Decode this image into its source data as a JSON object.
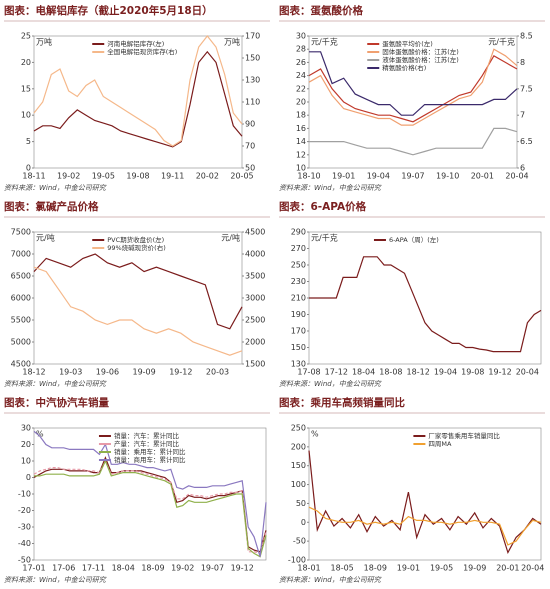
{
  "chart_data": [
    {
      "type": "line",
      "title": "图表：电解铝库存（截止2020年5月18日）",
      "source": "资料来源：Wind，中金公司研究",
      "unit": "万吨",
      "y2unit": "万吨",
      "legend": "upper center",
      "categories": [
        "18-11",
        null,
        null,
        null,
        "19-02",
        null,
        null,
        null,
        "19-05",
        null,
        null,
        null,
        "19-08",
        null,
        null,
        null,
        "19-11",
        null,
        null,
        null,
        "20-02",
        null,
        null,
        null,
        "20-05"
      ],
      "ylim": [
        0,
        25
      ],
      "yticks": [
        0,
        5,
        10,
        15,
        20,
        25
      ],
      "y2lim": [
        50,
        170
      ],
      "y2ticks": [
        50,
        70,
        90,
        110,
        130,
        150,
        170
      ],
      "series": [
        {
          "name": "河南电解铝库存(左)",
          "color": "#7b1c1c",
          "values": [
            7,
            8,
            8,
            7.5,
            9.5,
            11,
            10,
            9,
            8.5,
            8,
            7,
            6.5,
            6,
            5.5,
            5,
            4.5,
            4,
            5,
            12,
            20,
            22,
            20,
            14,
            8,
            6
          ]
        },
        {
          "name": "全国电解铝现货库存(右)",
          "color": "#f5b88a",
          "axis": "y2",
          "values": [
            100,
            110,
            135,
            140,
            120,
            115,
            125,
            130,
            115,
            110,
            105,
            100,
            95,
            90,
            85,
            75,
            70,
            75,
            130,
            160,
            170,
            160,
            135,
            100,
            90
          ]
        }
      ]
    },
    {
      "type": "line",
      "title": "图表：蛋氨酸价格",
      "source": "资料来源：Wind，中金公司研究",
      "unit": "元/千克",
      "y2unit": "元/千克",
      "legend": "upper center",
      "categories": [
        "18-10",
        null,
        null,
        "19-01",
        null,
        null,
        "19-04",
        null,
        null,
        "19-07",
        null,
        null,
        "19-10",
        null,
        null,
        "20-01",
        null,
        null,
        "20-04"
      ],
      "ylim": [
        10,
        30
      ],
      "yticks": [
        10,
        12,
        14,
        16,
        18,
        20,
        22,
        24,
        26,
        28,
        30
      ],
      "y2lim": [
        6,
        8.5
      ],
      "y2ticks": [
        6,
        6.5,
        7,
        7.5,
        8,
        8.5
      ],
      "series": [
        {
          "name": "蛋氨酸平均价(左)",
          "color": "#c0392b",
          "values": [
            24,
            25,
            22,
            20,
            19,
            18.5,
            18,
            18,
            17.5,
            17,
            18,
            19,
            20,
            21,
            21.5,
            24,
            27,
            26,
            25
          ]
        },
        {
          "name": "固体蛋氨酸价格：江苏(左)",
          "color": "#f0a070",
          "values": [
            23,
            24,
            21,
            19,
            18.5,
            18,
            17.5,
            17.5,
            16.5,
            16.5,
            17.5,
            18.5,
            19.5,
            20.5,
            21,
            23,
            28,
            27,
            25.5
          ]
        },
        {
          "name": "液体蛋氨酸价格：江苏(左)",
          "color": "#a0a0a0",
          "values": [
            14,
            14,
            14,
            14,
            13.5,
            13,
            13,
            13,
            12.5,
            12,
            12.5,
            13,
            13,
            13,
            13,
            13,
            16,
            16,
            15.5
          ]
        },
        {
          "name": "精氨酸价格(右)",
          "color": "#3b2a6b",
          "axis": "y2",
          "values": [
            8.2,
            8.2,
            7.6,
            7.7,
            7.4,
            7.3,
            7.2,
            7.2,
            7,
            7,
            7.2,
            7.2,
            7.2,
            7.2,
            7.2,
            7.2,
            7.3,
            7.3,
            7.5
          ]
        }
      ]
    },
    {
      "type": "line",
      "title": "图表：氯碱产品价格",
      "source": "资料来源：Wind，中金公司研究",
      "unit": "元/吨",
      "y2unit": "元/吨",
      "legend": "upper center",
      "categories": [
        "18-12",
        null,
        null,
        "19-03",
        null,
        null,
        "19-06",
        null,
        null,
        "19-09",
        null,
        null,
        "19-12",
        null,
        null,
        "20-03",
        null,
        null
      ],
      "ylim": [
        4500,
        7500
      ],
      "yticks": [
        4500,
        5000,
        5500,
        6000,
        6500,
        7000,
        7500
      ],
      "y2lim": [
        1500,
        4500
      ],
      "y2ticks": [
        1500,
        2000,
        2500,
        3000,
        3500,
        4000,
        4500
      ],
      "series": [
        {
          "name": "PVC期货收盘价(左)",
          "color": "#7b1c1c",
          "values": [
            6600,
            6900,
            6800,
            6700,
            6900,
            7000,
            6800,
            6700,
            6800,
            6600,
            6700,
            6600,
            6500,
            6400,
            6300,
            5400,
            5300,
            5800
          ]
        },
        {
          "name": "99%烧碱现货价(右)",
          "color": "#f5b88a",
          "axis": "y2",
          "values": [
            3700,
            3600,
            3200,
            2800,
            2700,
            2500,
            2400,
            2500,
            2500,
            2300,
            2200,
            2300,
            2200,
            2000,
            1900,
            1800,
            1700,
            1800
          ]
        }
      ]
    },
    {
      "type": "line",
      "title": "图表：6-APA价格",
      "source": "资料来源：Wind，中金公司研究",
      "unit": "元/千克",
      "legend": "upper center",
      "categories": [
        "17-08",
        null,
        null,
        null,
        "17-12",
        null,
        null,
        null,
        "18-04",
        null,
        null,
        null,
        "18-08",
        null,
        null,
        null,
        "18-12",
        null,
        null,
        null,
        "19-04",
        null,
        null,
        null,
        "19-08",
        null,
        null,
        null,
        "19-12",
        null,
        null,
        null,
        "20-04",
        null,
        null
      ],
      "ylim": [
        130,
        290
      ],
      "yticks": [
        130,
        150,
        170,
        190,
        210,
        230,
        250,
        270,
        290
      ],
      "series": [
        {
          "name": "6-APA（周）(左)",
          "color": "#7b1c1c",
          "values": [
            210,
            210,
            210,
            210,
            210,
            235,
            235,
            235,
            260,
            260,
            260,
            250,
            250,
            245,
            240,
            220,
            200,
            180,
            170,
            165,
            160,
            155,
            155,
            150,
            150,
            148,
            147,
            145,
            145,
            145,
            145,
            145,
            180,
            190,
            195
          ]
        }
      ]
    },
    {
      "type": "line",
      "title": "图表：中汽协汽车销量",
      "source": "资料来源：Wind，中金公司研究",
      "unit": "%",
      "legend": "upper center",
      "categories": [
        "17-01",
        null,
        null,
        null,
        null,
        "17-06",
        null,
        null,
        null,
        null,
        "17-11",
        null,
        null,
        null,
        null,
        "18-04",
        null,
        null,
        null,
        null,
        "18-09",
        null,
        null,
        null,
        null,
        "19-02",
        null,
        null,
        null,
        null,
        "19-07",
        null,
        null,
        null,
        null,
        "19-12",
        null,
        null,
        null,
        null
      ],
      "ylim": [
        -50,
        30
      ],
      "yticks": [
        -50,
        -40,
        -30,
        -20,
        -10,
        0,
        10,
        20,
        30
      ],
      "series": [
        {
          "name": "销量：汽车：累计同比",
          "color": "#7b1c1c",
          "values": [
            0,
            2,
            4,
            5,
            5,
            5,
            4,
            4,
            4,
            4,
            3,
            3,
            12,
            3,
            3,
            4,
            4,
            4,
            4,
            3,
            2,
            1,
            0,
            -3,
            -15,
            -14,
            -11,
            -12,
            -12,
            -13,
            -12,
            -11,
            -11,
            -10,
            -9,
            -8,
            -42,
            -44,
            -45,
            -32
          ]
        },
        {
          "name": "产量：汽车：累计同比",
          "color": "#e89aa8",
          "dashed": true,
          "values": [
            2,
            4,
            5,
            6,
            6,
            5,
            5,
            5,
            5,
            4,
            4,
            3,
            10,
            2,
            3,
            4,
            4,
            4,
            3,
            2,
            1,
            0,
            -1,
            -3,
            -13,
            -13,
            -10,
            -11,
            -11,
            -12,
            -11,
            -10,
            -10,
            -9,
            -9,
            -8,
            -45,
            -45,
            -46,
            -33
          ]
        },
        {
          "name": "销量：乘用车：累计同比",
          "color": "#8fb04a",
          "values": [
            1,
            1,
            2,
            2,
            2,
            2,
            1,
            1,
            1,
            1,
            1,
            2,
            10,
            1,
            2,
            3,
            3,
            3,
            2,
            1,
            0,
            -1,
            -2,
            -4,
            -18,
            -17,
            -14,
            -15,
            -15,
            -15,
            -14,
            -13,
            -12,
            -11,
            -10,
            -10,
            -43,
            -46,
            -48,
            -35
          ]
        },
        {
          "name": "销量：商用车：累计同比",
          "color": "#8a78c0",
          "values": [
            28,
            25,
            20,
            18,
            18,
            18,
            17,
            17,
            17,
            17,
            17,
            14,
            20,
            8,
            8,
            9,
            8,
            8,
            7,
            6,
            6,
            5,
            4,
            5,
            -6,
            -7,
            -5,
            -6,
            -6,
            -6,
            -5,
            -5,
            -5,
            -4,
            -3,
            -2,
            -30,
            -36,
            -48,
            -15
          ]
        }
      ]
    },
    {
      "type": "line",
      "title": "图表：乘用车高频销量同比",
      "source": "资料来源：Wind，中金公司研究",
      "unit": "%",
      "legend": "upper right",
      "categories": [
        "18-01",
        null,
        null,
        null,
        "18-05",
        null,
        null,
        null,
        "18-09",
        null,
        null,
        null,
        "19-01",
        null,
        null,
        null,
        "19-05",
        null,
        null,
        null,
        "19-09",
        null,
        null,
        null,
        "20-01",
        null,
        null,
        "20-04",
        null
      ],
      "ylim": [
        -100,
        250
      ],
      "yticks": [
        -100,
        -50,
        0,
        50,
        100,
        150,
        200,
        250
      ],
      "series": [
        {
          "name": "厂家零售乘用车销量同比",
          "color": "#7b1c1c",
          "values": [
            190,
            -20,
            30,
            -10,
            10,
            -15,
            20,
            -25,
            15,
            -10,
            5,
            -20,
            80,
            -40,
            20,
            -5,
            10,
            -20,
            15,
            -5,
            25,
            -15,
            10,
            -10,
            -80,
            -40,
            -20,
            10,
            -5
          ]
        },
        {
          "name": "四周MA",
          "color": "#f0a030",
          "values": [
            40,
            30,
            10,
            5,
            0,
            0,
            5,
            -5,
            0,
            -5,
            0,
            -5,
            15,
            5,
            5,
            0,
            0,
            -5,
            0,
            0,
            5,
            0,
            0,
            -5,
            -60,
            -50,
            -20,
            5,
            0
          ]
        }
      ]
    }
  ]
}
